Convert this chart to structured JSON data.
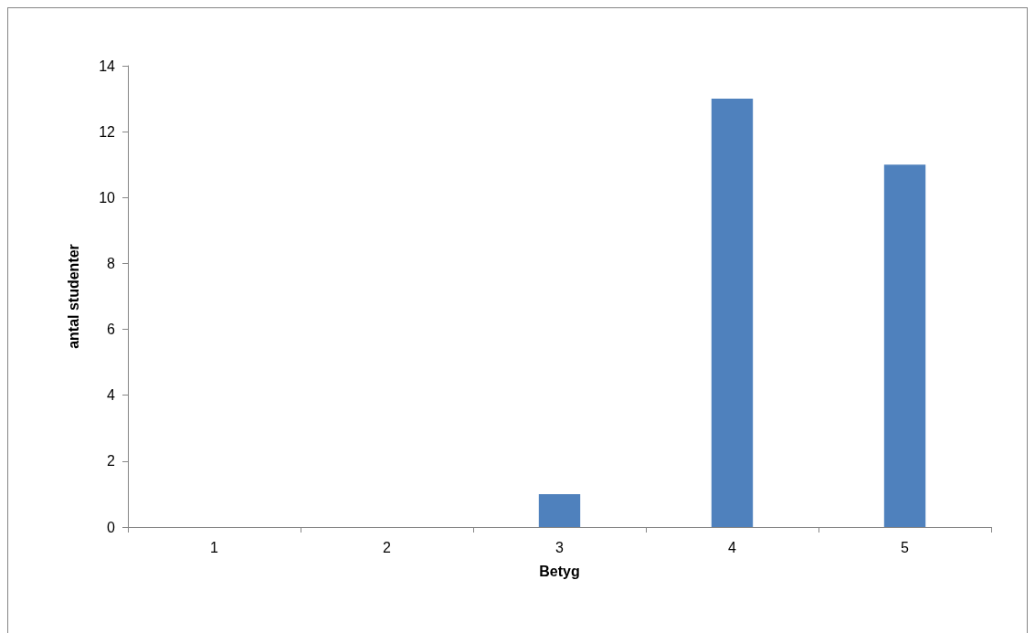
{
  "chart_data": {
    "type": "bar",
    "xlabel": "Betyg",
    "ylabel": "antal studenter",
    "categories": [
      "1",
      "2",
      "3",
      "4",
      "5"
    ],
    "series": [
      {
        "color": "#4f81bd",
        "values": [
          0,
          0,
          1,
          13,
          11
        ]
      }
    ],
    "ylim": [
      0,
      14
    ],
    "yticks": [
      0,
      2,
      4,
      6,
      8,
      10,
      12,
      14
    ]
  }
}
